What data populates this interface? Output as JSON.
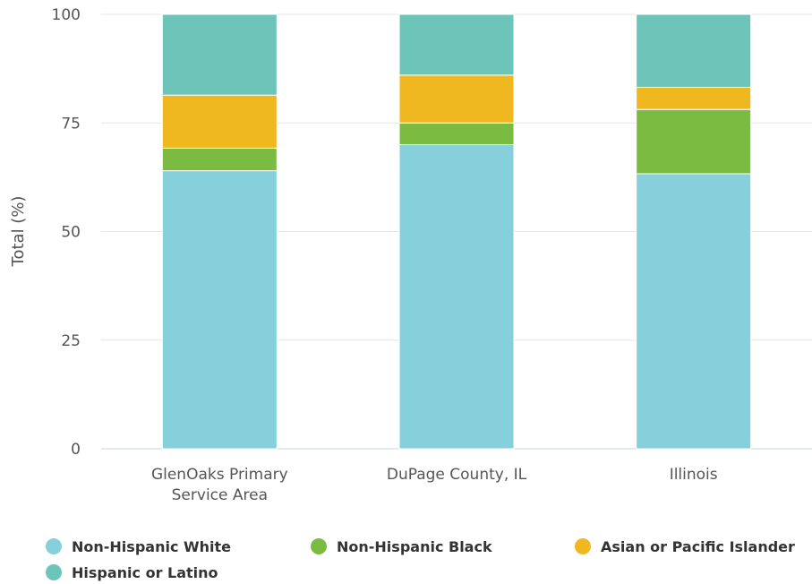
{
  "chart_data": {
    "type": "bar",
    "stacked": true,
    "categories": [
      "GlenOaks Primary Service Area",
      "DuPage County, IL",
      "Illinois"
    ],
    "category_lines": [
      [
        "GlenOaks Primary",
        "Service Area"
      ],
      [
        "DuPage County, IL"
      ],
      [
        "Illinois"
      ]
    ],
    "series": [
      {
        "name": "Non-Hispanic White",
        "color": "#86d0db",
        "values": [
          64,
          70,
          63.3
        ]
      },
      {
        "name": "Non-Hispanic Black",
        "color": "#7bbb41",
        "values": [
          5.2,
          5,
          14.8
        ]
      },
      {
        "name": "Asian or Pacific Islander",
        "color": "#efb820",
        "values": [
          12.2,
          11,
          5.1
        ]
      },
      {
        "name": "Hispanic or Latino",
        "color": "#6dc5b9",
        "values": [
          18.6,
          14,
          16.8
        ]
      }
    ],
    "ylabel": "Total (%)",
    "xlabel": "",
    "ylim": [
      0,
      100
    ],
    "yticks": [
      0,
      25,
      50,
      75,
      100
    ],
    "grid": true,
    "legend_position": "bottom-left"
  }
}
